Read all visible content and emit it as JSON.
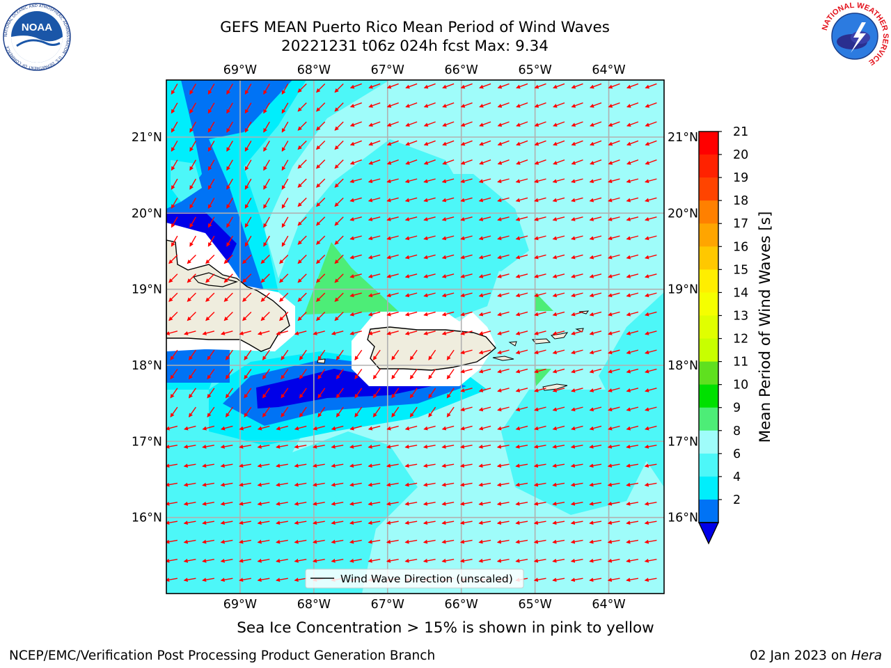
{
  "header": {
    "title_line1": "GEFS MEAN Puerto Rico Mean Period of Wind Waves",
    "title_line2": "20221231 t06z 024h fcst   Max: 9.34"
  },
  "logos": {
    "left": {
      "icon": "noaa-logo",
      "text": "NOAA",
      "ring_text": "NATIONAL OCEANIC AND ATMOSPHERIC ADMINISTRATION · U.S. DEPARTMENT OF COMMERCE"
    },
    "right": {
      "icon": "nws-logo",
      "ring_text": "NATIONAL WEATHER SERVICE"
    }
  },
  "map": {
    "lon_ticks": [
      "69°W",
      "68°W",
      "67°W",
      "66°W",
      "65°W",
      "64°W"
    ],
    "lat_ticks": [
      "21°N",
      "20°N",
      "19°N",
      "18°N",
      "17°N",
      "16°N"
    ],
    "lon_values": [
      -69,
      -68,
      -67,
      -66,
      -65,
      -64
    ],
    "lat_values": [
      21,
      20,
      19,
      18,
      17,
      16
    ],
    "extent": {
      "lon_min": -70,
      "lon_max": -63.25,
      "lat_min": 15.0,
      "lat_max": 21.75
    },
    "legend_label": "Wind Wave Direction (unscaled)",
    "arrow_color": "#ff0000",
    "land_color": "#efedde",
    "wave_direction": "from east-northeast toward west-southwest"
  },
  "colorbar": {
    "label": "Mean Period of Wind Waves [s]",
    "ticks": [
      "21",
      "20",
      "19",
      "18",
      "17",
      "16",
      "15",
      "14",
      "13",
      "12",
      "11",
      "10",
      "9",
      "8",
      "6",
      "4",
      "2"
    ],
    "colors": [
      "#ff0000",
      "#ff2200",
      "#ff4400",
      "#ff8000",
      "#ffa500",
      "#ffc800",
      "#ffee00",
      "#f5ff00",
      "#e0ff00",
      "#c8ff00",
      "#5fe01f",
      "#00e000",
      "#4ded77",
      "#9ffcfa",
      "#4df7f8",
      "#00eefc",
      "#0073f5",
      "#0000e8"
    ]
  },
  "note": "Sea Ice Concentration > 15% is shown in pink to yellow",
  "footer": {
    "left": "NCEP/EMC/Verification Post Processing Product Generation Branch",
    "right_date": "02 Jan 2023 on ",
    "right_host": "Hera"
  }
}
